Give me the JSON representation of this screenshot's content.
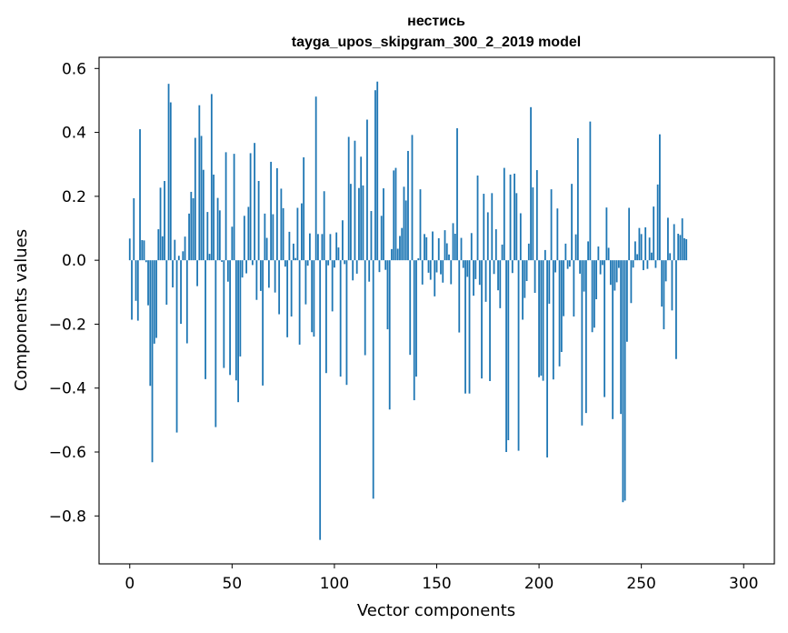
{
  "chart_data": {
    "type": "bar",
    "title": "нестись",
    "subtitle": "tayga_upos_skipgram_300_2_2019 model",
    "xlabel": "Vector components",
    "ylabel": "Components values",
    "xlim": [
      -15,
      315
    ],
    "ylim": [
      -0.95,
      0.635
    ],
    "xticks": [
      0,
      50,
      100,
      150,
      200,
      250,
      300
    ],
    "yticks": [
      -0.8,
      -0.6,
      -0.4,
      -0.2,
      0.0,
      0.2,
      0.4,
      0.6
    ],
    "ytick_labels": [
      "−0.8",
      "−0.6",
      "−0.4",
      "−0.2",
      "0.0",
      "0.2",
      "0.4",
      "0.6"
    ],
    "grid": false,
    "bar_color": "#1f77b4",
    "values": [
      0.068,
      -0.186,
      0.194,
      -0.127,
      -0.189,
      0.41,
      0.063,
      0.062,
      -0.006,
      -0.141,
      -0.393,
      -0.632,
      -0.261,
      -0.243,
      0.097,
      0.227,
      0.075,
      0.248,
      -0.139,
      0.552,
      0.494,
      -0.085,
      0.064,
      -0.539,
      0.014,
      -0.199,
      0.028,
      0.074,
      -0.26,
      0.146,
      0.214,
      0.194,
      0.383,
      -0.081,
      0.485,
      0.389,
      0.283,
      -0.372,
      0.151,
      0.02,
      0.52,
      0.268,
      -0.522,
      0.195,
      0.156,
      -0.005,
      -0.337,
      0.338,
      -0.067,
      -0.359,
      0.105,
      0.333,
      -0.376,
      -0.444,
      -0.301,
      -0.054,
      0.139,
      -0.041,
      0.167,
      0.335,
      -0.015,
      0.367,
      -0.124,
      0.248,
      -0.096,
      -0.392,
      0.146,
      0.07,
      -0.086,
      0.308,
      0.144,
      -0.101,
      0.288,
      -0.169,
      0.224,
      0.163,
      -0.02,
      -0.241,
      0.089,
      -0.176,
      0.052,
      0.007,
      0.164,
      -0.264,
      0.178,
      0.322,
      -0.138,
      -0.017,
      0.084,
      -0.225,
      -0.239,
      0.512,
      0.082,
      -0.875,
      0.082,
      0.216,
      -0.353,
      -0.016,
      0.082,
      -0.16,
      -0.023,
      0.087,
      0.04,
      -0.364,
      0.125,
      -0.012,
      -0.39,
      0.386,
      0.239,
      -0.063,
      0.374,
      -0.042,
      0.226,
      0.324,
      0.234,
      -0.297,
      0.44,
      -0.067,
      0.154,
      -0.746,
      0.532,
      0.559,
      -0.037,
      0.139,
      0.225,
      -0.03,
      -0.216,
      -0.467,
      0.035,
      0.281,
      0.289,
      0.036,
      0.076,
      0.101,
      0.23,
      0.187,
      0.342,
      -0.296,
      0.392,
      -0.438,
      -0.364,
      0.006,
      0.222,
      -0.076,
      0.082,
      0.072,
      -0.039,
      -0.061,
      0.09,
      -0.113,
      -0.038,
      0.069,
      -0.044,
      -0.07,
      0.094,
      0.053,
      0.018,
      -0.075,
      0.116,
      0.083,
      0.413,
      -0.226,
      0.07,
      -0.024,
      -0.417,
      -0.052,
      -0.417,
      0.085,
      -0.111,
      -0.059,
      0.265,
      -0.077,
      -0.37,
      0.208,
      -0.13,
      0.15,
      -0.378,
      0.21,
      -0.043,
      0.097,
      -0.094,
      -0.15,
      0.049,
      0.289,
      -0.6,
      -0.563,
      0.268,
      -0.04,
      0.271,
      0.21,
      -0.596,
      0.147,
      -0.186,
      -0.118,
      -0.065,
      0.052,
      0.479,
      0.228,
      -0.102,
      0.282,
      -0.366,
      -0.361,
      -0.377,
      0.032,
      -0.617,
      -0.136,
      0.222,
      -0.373,
      -0.038,
      0.162,
      -0.332,
      -0.287,
      -0.175,
      0.052,
      -0.027,
      -0.02,
      0.239,
      -0.176,
      0.081,
      0.382,
      -0.042,
      -0.517,
      -0.098,
      -0.478,
      0.059,
      0.434,
      -0.225,
      -0.211,
      -0.122,
      0.043,
      -0.044,
      -0.015,
      -0.428,
      0.165,
      0.039,
      -0.077,
      -0.497,
      -0.095,
      -0.069,
      -0.024,
      -0.481,
      -0.757,
      -0.752,
      -0.255,
      0.164,
      -0.134,
      -0.023,
      0.059,
      0.019,
      0.101,
      0.082,
      -0.031,
      0.103,
      -0.027,
      0.071,
      0.024,
      0.168,
      -0.024,
      0.237,
      0.394,
      -0.145,
      -0.216,
      -0.066,
      0.133,
      0.022,
      -0.157,
      0.113,
      -0.309,
      0.083,
      0.079,
      0.131,
      0.069,
      0.066
    ]
  }
}
